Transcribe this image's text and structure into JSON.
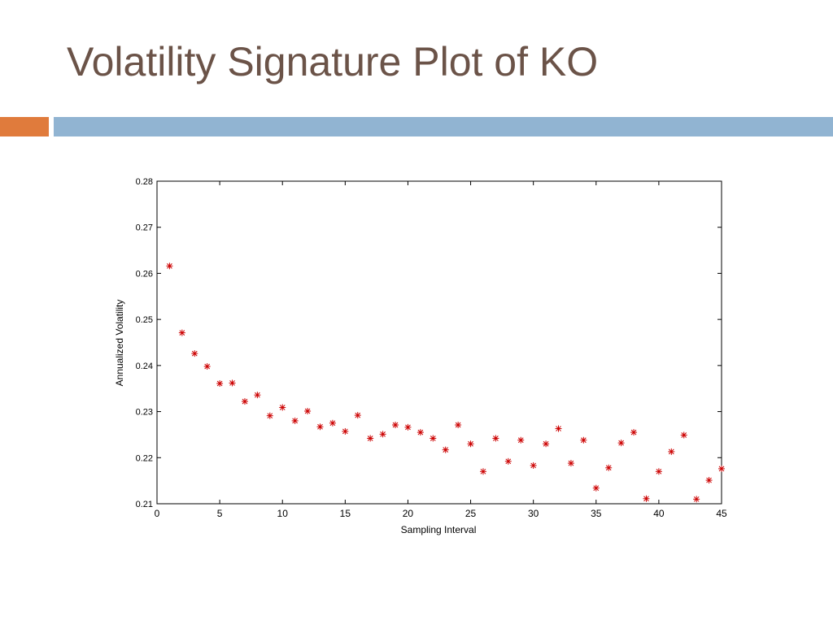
{
  "slide": {
    "title": "Volatility Signature Plot of KO",
    "colors": {
      "title": "#6b5348",
      "accent_bar": "#e07b3c",
      "main_bar": "#91b4d2"
    }
  },
  "chart_data": {
    "type": "scatter",
    "title": "",
    "xlabel": "Sampling Interval",
    "ylabel": "Annualized Volatility",
    "xlim": [
      0,
      45
    ],
    "ylim": [
      0.21,
      0.28
    ],
    "xticks": [
      0,
      5,
      10,
      15,
      20,
      25,
      30,
      35,
      40,
      45
    ],
    "yticks": [
      0.21,
      0.22,
      0.23,
      0.24,
      0.25,
      0.26,
      0.27,
      0.28
    ],
    "ytick_labels": [
      "0.21",
      "0.22",
      "0.23",
      "0.24",
      "0.25",
      "0.26",
      "0.27",
      "0.28"
    ],
    "marker": "asterisk",
    "marker_color": "#cc0000",
    "grid": false,
    "series": [
      {
        "x": [
          1,
          2,
          3,
          4,
          5,
          6,
          7,
          8,
          9,
          10,
          11,
          12,
          13,
          14,
          15,
          16,
          17,
          18,
          19,
          20,
          21,
          22,
          23,
          24,
          25,
          26,
          27,
          28,
          29,
          30,
          31,
          32,
          33,
          34,
          35,
          36,
          37,
          38,
          39,
          40,
          41,
          42,
          43,
          44,
          45
        ],
        "y": [
          0.2616,
          0.2471,
          0.2426,
          0.2398,
          0.2361,
          0.2362,
          0.2322,
          0.2336,
          0.2291,
          0.2309,
          0.228,
          0.2301,
          0.2267,
          0.2275,
          0.2257,
          0.2292,
          0.2242,
          0.2251,
          0.2271,
          0.2266,
          0.2255,
          0.2242,
          0.2217,
          0.2271,
          0.223,
          0.217,
          0.2242,
          0.2192,
          0.2238,
          0.2183,
          0.223,
          0.2263,
          0.2188,
          0.2238,
          0.2134,
          0.2178,
          0.2232,
          0.2255,
          0.2111,
          0.217,
          0.2213,
          0.2249,
          0.211,
          0.2151,
          0.2176
        ]
      }
    ]
  }
}
